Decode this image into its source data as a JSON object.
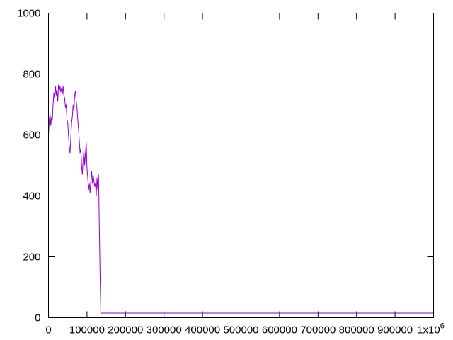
{
  "chart_data": {
    "type": "line",
    "title": "",
    "xlabel": "",
    "ylabel": "",
    "xlim": [
      0,
      1000000
    ],
    "ylim": [
      0,
      1000
    ],
    "grid": false,
    "legend": "none",
    "x_ticks": [
      {
        "value": 0,
        "label": "0"
      },
      {
        "value": 100000,
        "label": "100000"
      },
      {
        "value": 200000,
        "label": "200000"
      },
      {
        "value": 300000,
        "label": "300000"
      },
      {
        "value": 400000,
        "label": "400000"
      },
      {
        "value": 500000,
        "label": "500000"
      },
      {
        "value": 600000,
        "label": "600000"
      },
      {
        "value": 700000,
        "label": "700000"
      },
      {
        "value": 800000,
        "label": "800000"
      },
      {
        "value": 900000,
        "label": "900000"
      }
    ],
    "x_end_label": {
      "value": 1000000,
      "base": "1x10",
      "exponent": "6"
    },
    "y_ticks": [
      {
        "value": 0,
        "label": "0"
      },
      {
        "value": 200,
        "label": "200"
      },
      {
        "value": 400,
        "label": "400"
      },
      {
        "value": 600,
        "label": "600"
      },
      {
        "value": 800,
        "label": "800"
      },
      {
        "value": 1000,
        "label": "1000"
      }
    ],
    "series": [
      {
        "color": "#9400d3",
        "x": [
          0,
          2000,
          4000,
          6000,
          8000,
          10000,
          12000,
          14000,
          16000,
          18000,
          20000,
          22000,
          24000,
          26000,
          28000,
          30000,
          32000,
          34000,
          36000,
          38000,
          40000,
          42000,
          44000,
          46000,
          48000,
          50000,
          52000,
          54000,
          56000,
          58000,
          60000,
          62000,
          64000,
          66000,
          68000,
          70000,
          72000,
          74000,
          76000,
          78000,
          80000,
          82000,
          84000,
          86000,
          88000,
          90000,
          92000,
          94000,
          96000,
          98000,
          100000,
          102000,
          104000,
          106000,
          108000,
          110000,
          112000,
          114000,
          116000,
          118000,
          120000,
          122000,
          124000,
          126000,
          128000,
          130000,
          132000,
          134000,
          136000,
          138000,
          140000,
          1000000
        ],
        "values": [
          600,
          650,
          670,
          630,
          660,
          650,
          700,
          740,
          720,
          760,
          730,
          750,
          710,
          765,
          745,
          760,
          740,
          755,
          735,
          760,
          730,
          720,
          690,
          700,
          650,
          640,
          600,
          560,
          540,
          590,
          640,
          660,
          700,
          680,
          730,
          745,
          710,
          690,
          650,
          620,
          580,
          540,
          555,
          500,
          470,
          520,
          550,
          500,
          540,
          575,
          490,
          460,
          420,
          440,
          410,
          450,
          480,
          440,
          470,
          450,
          430,
          440,
          400,
          460,
          420,
          470,
          300,
          140,
          15,
          15,
          15,
          15
        ]
      }
    ]
  }
}
